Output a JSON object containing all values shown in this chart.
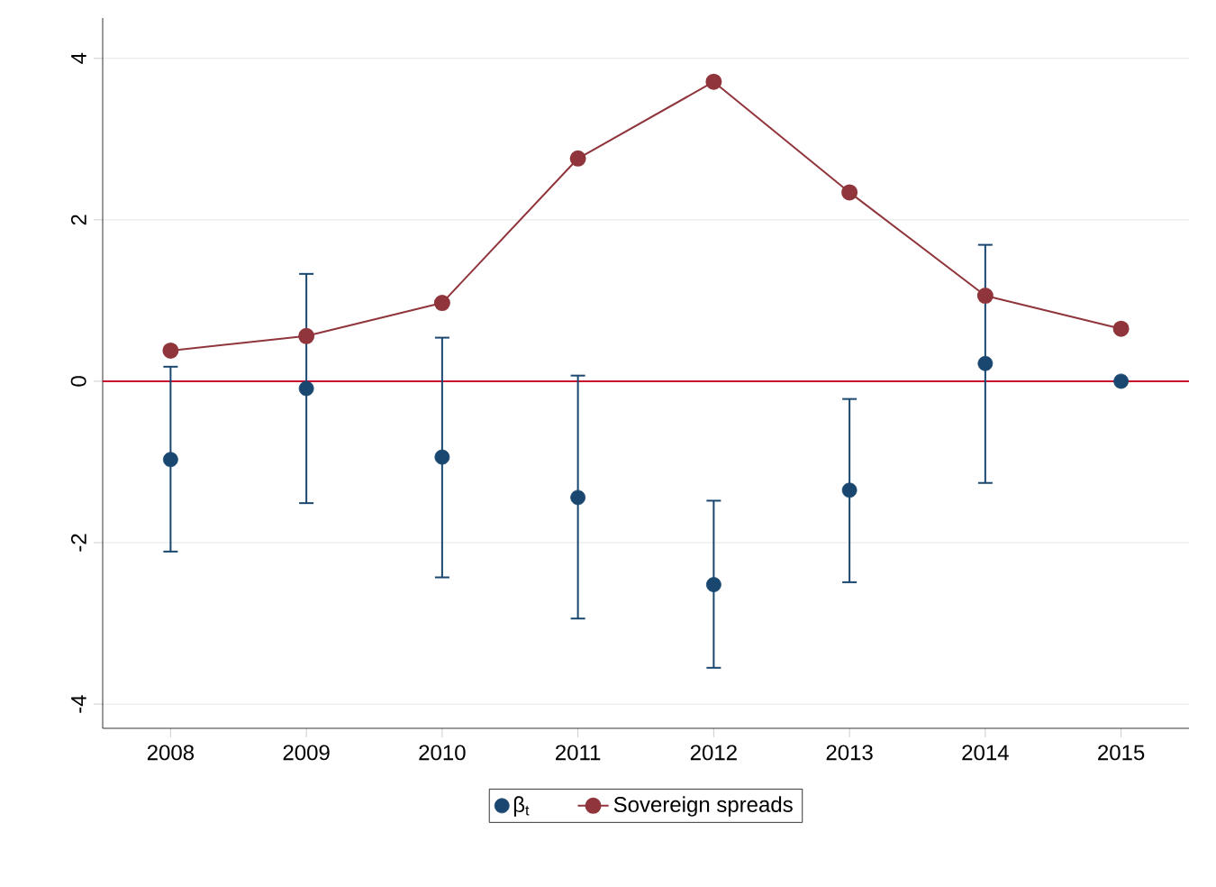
{
  "chart_data": {
    "type": "line",
    "x": [
      2008,
      2009,
      2010,
      2011,
      2012,
      2013,
      2014,
      2015
    ],
    "series": [
      {
        "name": "β$_{t}$",
        "type": "scatter",
        "color": "#1a476f",
        "values": [
          -0.97,
          -0.09,
          -0.94,
          -1.44,
          -2.52,
          -1.35,
          0.22,
          0.0
        ],
        "errors": [
          [
            -2.11,
            0.18
          ],
          [
            -1.51,
            1.33
          ],
          [
            -2.43,
            0.54
          ],
          [
            -2.94,
            0.07
          ],
          [
            -3.55,
            -1.48
          ],
          [
            -2.49,
            -0.22
          ],
          [
            -1.26,
            1.69
          ],
          null
        ]
      },
      {
        "name": "Sovereign spreads",
        "color": "#90353b",
        "values": [
          0.38,
          0.56,
          0.97,
          2.76,
          3.71,
          2.34,
          1.06,
          0.65
        ]
      }
    ],
    "xlim": [
      2007.5,
      2015.5
    ],
    "xticks": [
      2008,
      2009,
      2010,
      2011,
      2012,
      2013,
      2014,
      2015
    ],
    "ylim": [
      -4.3,
      4.5
    ],
    "yticks": [
      -4,
      -2,
      0,
      2,
      4
    ],
    "ref_lines": [
      {
        "axis": "y",
        "value": 0,
        "color": "#c8102e"
      }
    ],
    "grid": "y",
    "legend": "bottom",
    "marker": "circle"
  }
}
